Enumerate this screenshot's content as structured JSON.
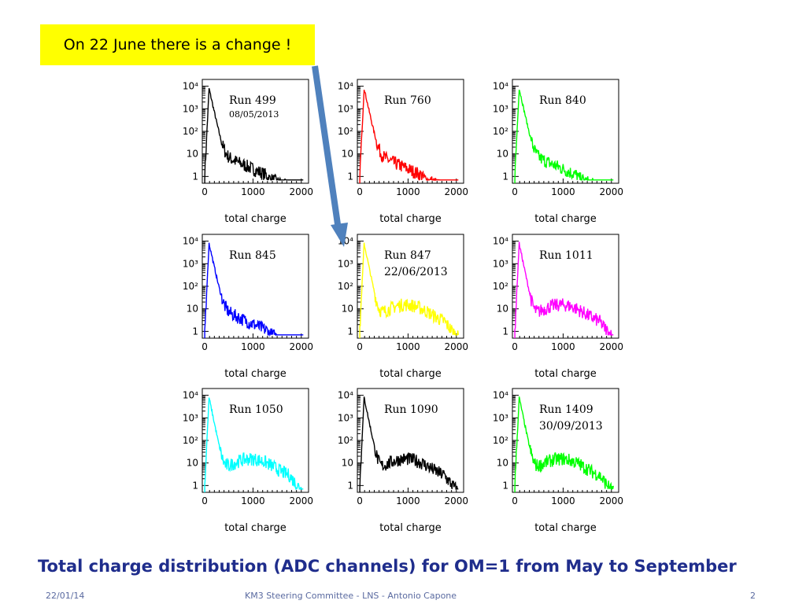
{
  "slide": {
    "callout": "On 22 June there is a change !",
    "caption": "Total charge distribution (ADC channels) for OM=1 from May to September",
    "footer_date": "22/01/14",
    "footer_center": "KM3 Steering Committee - LNS - Antonio Capone",
    "page_number": "2"
  },
  "colors": {
    "callout_bg": "#ffff00",
    "caption": "#1f2d8c",
    "arrow": "#4f81bd"
  },
  "chart_data": [
    {
      "type": "line",
      "run": "Run 499",
      "date": "08/05/2013",
      "color": "#000000",
      "shape": "early",
      "xlabel": "total charge",
      "xlim": [
        -50,
        2150
      ],
      "xticks": [
        0,
        1000,
        2000
      ],
      "yscale": "log",
      "ylim": [
        0.5,
        20000
      ],
      "yticks": [
        "1",
        "10",
        "10²",
        "10³",
        "10⁴"
      ],
      "peak": {
        "x": 90,
        "y": 8000
      },
      "bump": null
    },
    {
      "type": "line",
      "run": "Run 760",
      "date": "",
      "color": "#ff0000",
      "shape": "early",
      "xlabel": "total charge",
      "xlim": [
        -50,
        2150
      ],
      "xticks": [
        0,
        1000,
        2000
      ],
      "yscale": "log",
      "ylim": [
        0.5,
        20000
      ],
      "yticks": [
        "1",
        "10",
        "10²",
        "10³",
        "10⁴"
      ],
      "peak": {
        "x": 90,
        "y": 8000
      },
      "bump": null
    },
    {
      "type": "line",
      "run": "Run 840",
      "date": "",
      "color": "#00ff00",
      "shape": "early",
      "xlabel": "total charge",
      "xlim": [
        -50,
        2150
      ],
      "xticks": [
        0,
        1000,
        2000
      ],
      "yscale": "log",
      "ylim": [
        0.5,
        20000
      ],
      "yticks": [
        "1",
        "10",
        "10²",
        "10³",
        "10⁴"
      ],
      "peak": {
        "x": 90,
        "y": 8000
      },
      "bump": null
    },
    {
      "type": "line",
      "run": "Run 845",
      "date": "",
      "color": "#0000ff",
      "shape": "early",
      "xlabel": "total charge",
      "xlim": [
        -50,
        2150
      ],
      "xticks": [
        0,
        1000,
        2000
      ],
      "yscale": "log",
      "ylim": [
        0.5,
        20000
      ],
      "yticks": [
        "1",
        "10",
        "10²",
        "10³",
        "10⁴"
      ],
      "peak": {
        "x": 90,
        "y": 8000
      },
      "bump": null
    },
    {
      "type": "line",
      "run": "Run 847",
      "date": "22/06/2013",
      "color": "#ffff00",
      "shape": "late",
      "xlabel": "total charge",
      "xlim": [
        -50,
        2150
      ],
      "xticks": [
        0,
        1000,
        2000
      ],
      "yscale": "log",
      "ylim": [
        0.5,
        20000
      ],
      "yticks": [
        "1",
        "10",
        "10²",
        "10³",
        "10⁴"
      ],
      "peak": {
        "x": 90,
        "y": 8000
      },
      "bump": {
        "x": 950,
        "y": 15
      }
    },
    {
      "type": "line",
      "run": "Run 1011",
      "date": "",
      "color": "#ff00ff",
      "shape": "late",
      "xlabel": "total charge",
      "xlim": [
        -50,
        2150
      ],
      "xticks": [
        0,
        1000,
        2000
      ],
      "yscale": "log",
      "ylim": [
        0.5,
        20000
      ],
      "yticks": [
        "1",
        "10",
        "10²",
        "10³",
        "10⁴"
      ],
      "peak": {
        "x": 90,
        "y": 8000
      },
      "bump": {
        "x": 950,
        "y": 15
      }
    },
    {
      "type": "line",
      "run": "Run 1050",
      "date": "",
      "color": "#00ffff",
      "shape": "late",
      "xlabel": "total charge",
      "xlim": [
        -50,
        2150
      ],
      "xticks": [
        0,
        1000,
        2000
      ],
      "yscale": "log",
      "ylim": [
        0.5,
        20000
      ],
      "yticks": [
        "1",
        "10",
        "10²",
        "10³",
        "10⁴"
      ],
      "peak": {
        "x": 90,
        "y": 8000
      },
      "bump": {
        "x": 950,
        "y": 15
      }
    },
    {
      "type": "line",
      "run": "Run 1090",
      "date": "",
      "color": "#000000",
      "shape": "late",
      "xlabel": "total charge",
      "xlim": [
        -50,
        2150
      ],
      "xticks": [
        0,
        1000,
        2000
      ],
      "yscale": "log",
      "ylim": [
        0.5,
        20000
      ],
      "yticks": [
        "1",
        "10",
        "10²",
        "10³",
        "10⁴"
      ],
      "peak": {
        "x": 90,
        "y": 8000
      },
      "bump": {
        "x": 950,
        "y": 15
      }
    },
    {
      "type": "line",
      "run": "Run 1409",
      "date": "30/09/2013",
      "color": "#00ff00",
      "shape": "late",
      "xlabel": "total charge",
      "xlim": [
        -50,
        2150
      ],
      "xticks": [
        0,
        1000,
        2000
      ],
      "yscale": "log",
      "ylim": [
        0.5,
        20000
      ],
      "yticks": [
        "1",
        "10",
        "10²",
        "10³",
        "10⁴"
      ],
      "peak": {
        "x": 90,
        "y": 8000
      },
      "bump": {
        "x": 950,
        "y": 15
      }
    }
  ]
}
